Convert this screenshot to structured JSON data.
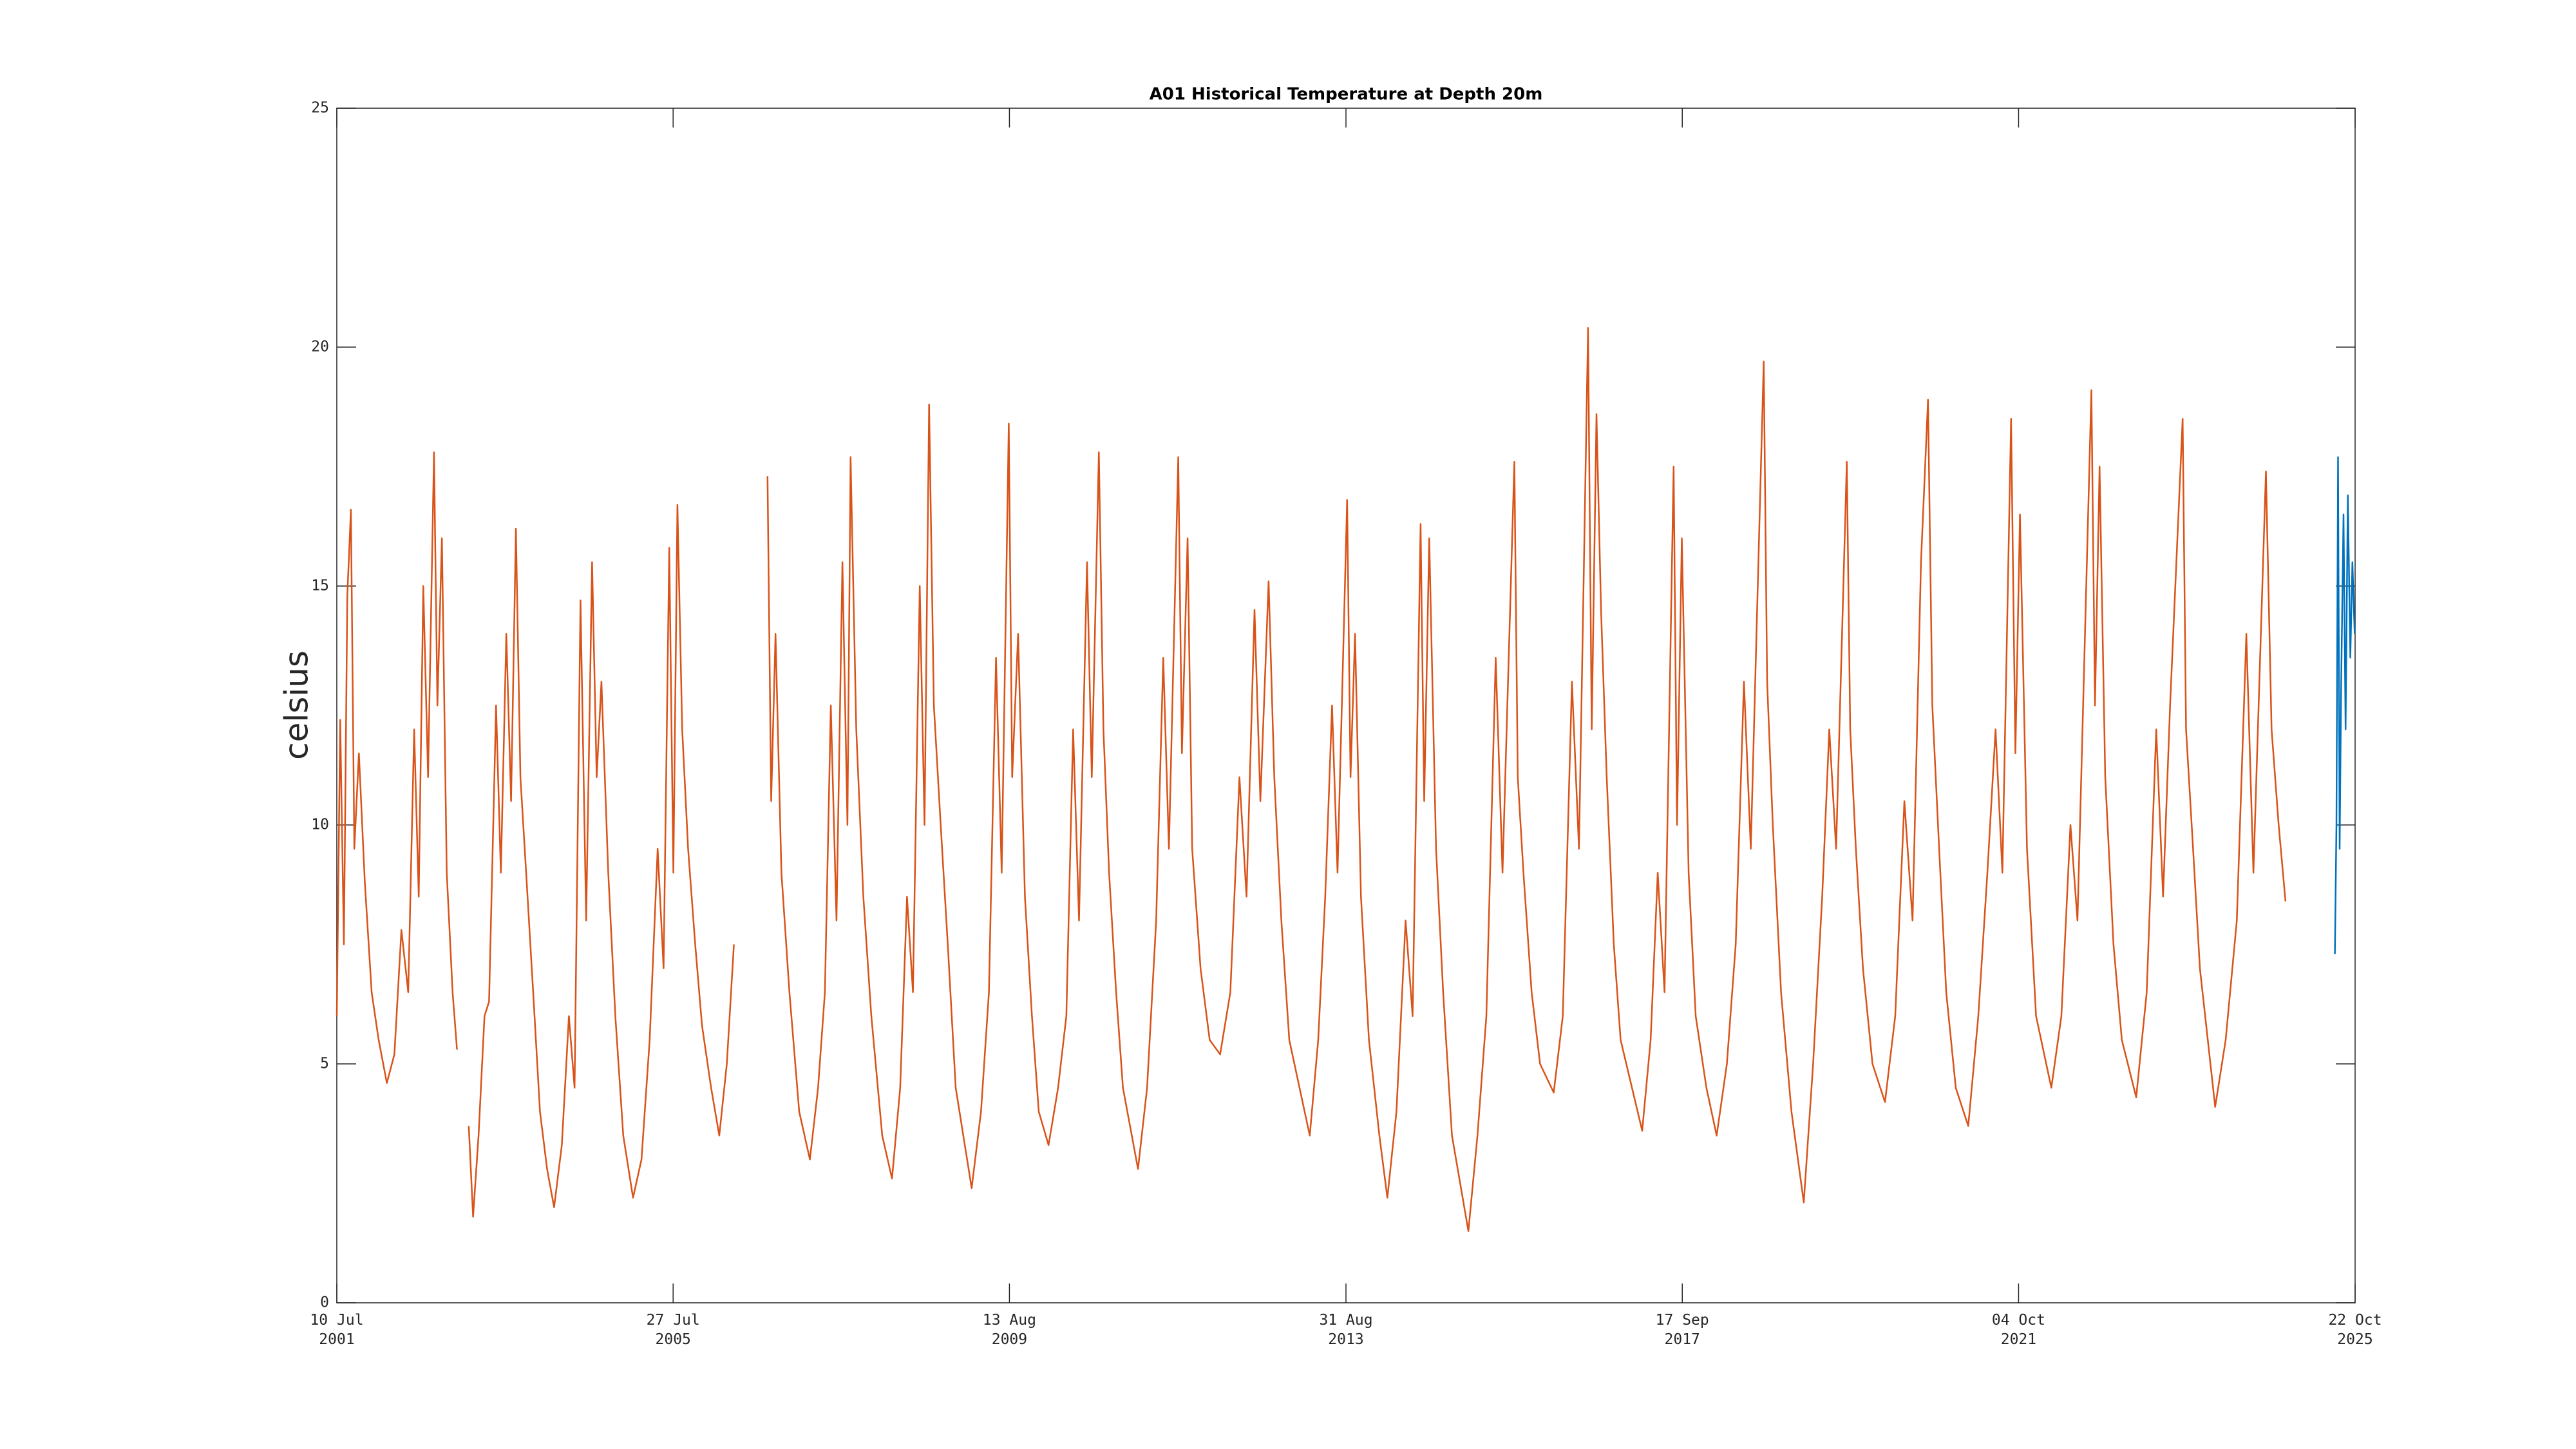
{
  "chart_data": {
    "type": "line",
    "title": "A01 Historical Temperature at Depth 20m",
    "ylabel": "celsius",
    "ylim": [
      0,
      25
    ],
    "yticks": [
      0,
      5,
      10,
      15,
      20,
      25
    ],
    "xlim": [
      "2001-07-10",
      "2025-10-22"
    ],
    "xticks": [
      {
        "value": "2001-07-10",
        "label": "10 Jul\n2001"
      },
      {
        "value": "2005-07-27",
        "label": "27 Jul\n2005"
      },
      {
        "value": "2009-08-13",
        "label": "13 Aug\n2009"
      },
      {
        "value": "2013-08-31",
        "label": "31 Aug\n2013"
      },
      {
        "value": "2017-09-17",
        "label": "17 Sep\n2017"
      },
      {
        "value": "2021-10-04",
        "label": "04 Oct\n2021"
      },
      {
        "value": "2025-10-22",
        "label": "22 Oct\n2025"
      }
    ],
    "grid": false,
    "series": [
      {
        "color": "#D95319",
        "x": [
          "2001-07-10",
          "2001-07-25",
          "2001-08-10",
          "2001-08-25",
          "2001-09-10",
          "2001-09-25",
          "2001-10-15",
          "2001-11-10",
          "2001-12-10",
          "2002-01-10",
          "2002-02-15",
          "2002-03-20",
          "2002-04-20",
          "2002-05-20",
          "2002-06-15",
          "2002-07-05",
          "2002-07-25",
          "2002-08-15",
          "2002-09-10",
          "2002-09-25",
          "2002-10-15",
          "2002-11-05",
          "2002-12-01",
          "2002-12-20",
          "2003-01-20",
          "2003-02-10",
          "2003-03-01",
          "2003-03-25",
          "2003-04-20",
          "2003-05-10",
          "2003-06-10",
          "2003-07-01",
          "2003-07-25",
          "2003-08-15",
          "2003-09-05",
          "2003-09-25",
          "2003-10-20",
          "2003-11-20",
          "2003-12-20",
          "2004-01-20",
          "2004-02-20",
          "2004-03-25",
          "2004-04-25",
          "2004-05-20",
          "2004-06-15",
          "2004-07-10",
          "2004-08-05",
          "2004-08-25",
          "2004-09-15",
          "2004-10-15",
          "2004-11-15",
          "2004-12-20",
          "2005-02-01",
          "2005-03-10",
          "2005-04-15",
          "2005-05-20",
          "2005-06-15",
          "2005-07-10",
          "2005-07-28",
          "2005-08-15",
          "2005-09-05",
          "2005-10-01",
          "2005-11-01",
          "2005-12-01",
          "2006-01-10",
          "2006-02-15",
          "2006-03-20",
          "2006-04-20",
          "2006-06-15",
          "2006-09-15",
          "2006-10-01",
          "2006-10-20",
          "2006-11-15",
          "2006-12-20",
          "2007-02-01",
          "2007-03-20",
          "2007-04-25",
          "2007-05-25",
          "2007-06-20",
          "2007-07-15",
          "2007-08-10",
          "2007-09-01",
          "2007-09-15",
          "2007-10-10",
          "2007-11-10",
          "2007-12-15",
          "2008-02-01",
          "2008-03-15",
          "2008-04-20",
          "2008-05-20",
          "2008-06-15",
          "2008-07-15",
          "2008-08-05",
          "2008-08-25",
          "2008-09-15",
          "2008-10-15",
          "2008-11-15",
          "2008-12-20",
          "2009-02-28",
          "2009-04-10",
          "2009-05-15",
          "2009-06-15",
          "2009-07-10",
          "2009-08-10",
          "2009-08-25",
          "2009-09-20",
          "2009-10-20",
          "2009-11-20",
          "2009-12-20",
          "2010-02-01",
          "2010-03-15",
          "2010-04-20",
          "2010-05-20",
          "2010-06-15",
          "2010-07-20",
          "2010-08-10",
          "2010-09-10",
          "2010-09-30",
          "2010-10-25",
          "2010-11-25",
          "2010-12-25",
          "2011-03-01",
          "2011-04-10",
          "2011-05-20",
          "2011-06-20",
          "2011-07-15",
          "2011-08-25",
          "2011-09-10",
          "2011-10-05",
          "2011-10-25",
          "2011-12-01",
          "2012-01-10",
          "2012-02-25",
          "2012-04-10",
          "2012-05-20",
          "2012-06-20",
          "2012-07-25",
          "2012-08-20",
          "2012-09-25",
          "2012-10-20",
          "2012-11-20",
          "2012-12-25",
          "2013-03-25",
          "2013-05-01",
          "2013-06-01",
          "2013-07-01",
          "2013-07-25",
          "2013-09-05",
          "2013-09-20",
          "2013-10-10",
          "2013-11-05",
          "2013-12-10",
          "2014-01-25",
          "2014-03-01",
          "2014-04-10",
          "2014-05-20",
          "2014-06-20",
          "2014-07-25",
          "2014-08-10",
          "2014-09-01",
          "2014-10-01",
          "2014-11-01",
          "2014-12-10",
          "2015-02-20",
          "2015-04-01",
          "2015-05-10",
          "2015-06-20",
          "2015-07-20",
          "2015-09-10",
          "2015-09-25",
          "2015-10-20",
          "2015-11-25",
          "2016-01-01",
          "2016-03-01",
          "2016-04-10",
          "2016-05-20",
          "2016-06-20",
          "2016-07-30",
          "2016-08-15",
          "2016-09-05",
          "2016-09-25",
          "2016-10-20",
          "2016-11-20",
          "2016-12-20",
          "2017-03-25",
          "2017-05-01",
          "2017-06-01",
          "2017-07-01",
          "2017-08-10",
          "2017-08-25",
          "2017-09-15",
          "2017-10-15",
          "2017-11-15",
          "2018-01-01",
          "2018-02-15",
          "2018-04-01",
          "2018-05-10",
          "2018-06-15",
          "2018-07-15",
          "2018-09-10",
          "2018-09-25",
          "2018-10-20",
          "2018-11-25",
          "2019-01-10",
          "2019-03-05",
          "2019-04-15",
          "2019-05-25",
          "2019-06-25",
          "2019-07-25",
          "2019-09-10",
          "2019-09-25",
          "2019-10-20",
          "2019-11-20",
          "2020-01-01",
          "2020-02-25",
          "2020-04-10",
          "2020-05-20",
          "2020-06-25",
          "2020-08-01",
          "2020-09-01",
          "2020-09-20",
          "2020-10-20",
          "2020-11-20",
          "2021-01-01",
          "2021-02-25",
          "2021-04-10",
          "2021-05-20",
          "2021-06-25",
          "2021-07-25",
          "2021-09-01",
          "2021-09-20",
          "2021-10-10",
          "2021-11-10",
          "2021-12-20",
          "2022-02-25",
          "2022-04-10",
          "2022-05-20",
          "2022-06-20",
          "2022-08-20",
          "2022-09-05",
          "2022-09-25",
          "2022-10-20",
          "2022-11-25",
          "2023-01-01",
          "2023-03-05",
          "2023-04-20",
          "2023-06-01",
          "2023-07-01",
          "2023-08-01",
          "2023-09-25",
          "2023-10-10",
          "2023-11-10",
          "2023-12-10",
          "2024-02-15",
          "2024-04-01",
          "2024-05-20",
          "2024-07-01",
          "2024-08-01",
          "2024-09-25",
          "2024-10-20",
          "2024-11-20",
          "2024-12-20"
        ],
        "values": [
          6.0,
          12.2,
          7.5,
          14.8,
          16.6,
          9.5,
          11.5,
          8.8,
          6.5,
          5.5,
          4.6,
          5.2,
          7.8,
          6.5,
          12.0,
          8.5,
          15.0,
          11.0,
          17.8,
          12.5,
          16.0,
          9.0,
          6.5,
          5.3,
          null,
          3.7,
          1.8,
          3.5,
          6.0,
          6.3,
          12.5,
          9.0,
          14.0,
          10.5,
          16.2,
          11.0,
          9.0,
          6.5,
          4.0,
          2.8,
          2.0,
          3.3,
          6.0,
          4.5,
          14.7,
          8.0,
          15.5,
          11.0,
          13.0,
          9.0,
          6.0,
          3.5,
          2.2,
          3.0,
          5.5,
          9.5,
          7.0,
          15.8,
          9.0,
          16.7,
          12.0,
          9.5,
          7.5,
          5.8,
          4.5,
          3.5,
          5.0,
          7.5,
          null,
          17.3,
          10.5,
          14.0,
          9.0,
          6.5,
          4.0,
          3.0,
          4.5,
          6.5,
          12.5,
          8.0,
          15.5,
          10.0,
          17.7,
          12.0,
          8.5,
          6.0,
          3.5,
          2.6,
          4.5,
          8.5,
          6.5,
          15.0,
          10.0,
          18.8,
          12.5,
          10.0,
          7.5,
          4.5,
          2.4,
          4.0,
          6.5,
          13.5,
          9.0,
          18.4,
          11.0,
          14.0,
          8.5,
          6.0,
          4.0,
          3.3,
          4.5,
          6.0,
          12.0,
          8.0,
          15.5,
          11.0,
          17.8,
          12.0,
          9.0,
          6.5,
          4.5,
          2.8,
          4.5,
          8.0,
          13.5,
          9.5,
          17.7,
          11.5,
          16.0,
          9.5,
          7.0,
          5.5,
          5.2,
          6.5,
          11.0,
          8.5,
          14.5,
          10.5,
          15.1,
          11.0,
          8.0,
          5.5,
          3.5,
          5.5,
          8.5,
          12.5,
          9.0,
          16.8,
          11.0,
          14.0,
          8.5,
          5.5,
          3.5,
          2.2,
          4.0,
          8.0,
          6.0,
          16.3,
          10.5,
          16.0,
          9.5,
          6.5,
          3.5,
          1.5,
          3.5,
          6.0,
          13.5,
          9.0,
          17.6,
          11.0,
          9.0,
          6.5,
          5.0,
          4.4,
          6.0,
          13.0,
          9.5,
          20.4,
          12.0,
          18.6,
          14.5,
          11.0,
          7.5,
          5.5,
          3.6,
          5.5,
          9.0,
          6.5,
          17.5,
          10.0,
          16.0,
          9.0,
          6.0,
          4.5,
          3.5,
          5.0,
          7.5,
          13.0,
          9.5,
          19.7,
          13.0,
          10.0,
          6.5,
          4.0,
          2.1,
          5.0,
          8.5,
          12.0,
          9.5,
          17.6,
          12.0,
          9.5,
          7.0,
          5.0,
          4.2,
          6.0,
          10.5,
          8.0,
          15.5,
          18.9,
          12.5,
          9.5,
          6.5,
          4.5,
          3.7,
          6.0,
          9.0,
          12.0,
          9.0,
          18.5,
          11.5,
          16.5,
          9.5,
          6.0,
          4.5,
          6.0,
          10.0,
          8.0,
          19.1,
          12.5,
          17.5,
          11.0,
          7.5,
          5.5,
          4.3,
          6.5,
          12.0,
          8.5,
          12.5,
          18.5,
          12.0,
          9.5,
          7.0,
          4.1,
          5.5,
          8.0,
          14.0,
          9.0,
          17.4,
          12.0,
          10.0,
          8.4
        ]
      },
      {
        "color": "#0072BD",
        "x": [
          "2025-07-25",
          "2025-08-01",
          "2025-08-08",
          "2025-08-15",
          "2025-08-22",
          "2025-09-01",
          "2025-09-10",
          "2025-09-20",
          "2025-10-01",
          "2025-10-10",
          "2025-10-20"
        ],
        "values": [
          7.3,
          10.0,
          17.7,
          9.5,
          13.0,
          16.5,
          12.0,
          16.9,
          13.5,
          15.5,
          14.0
        ]
      }
    ]
  }
}
